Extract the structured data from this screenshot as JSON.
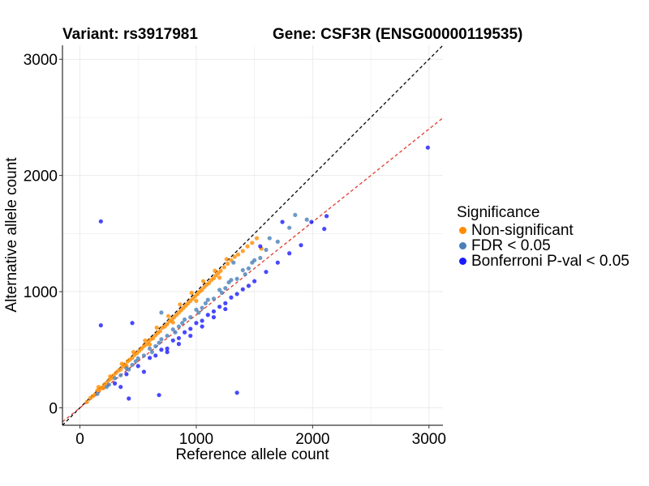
{
  "header": {
    "variant": "Variant: rs3917981",
    "gene": "Gene: CSF3R (ENSG00000119535)"
  },
  "chart_data": {
    "type": "scatter",
    "xlabel": "Reference allele count",
    "ylabel": "Alternative allele count",
    "xlim": [
      -150,
      3120
    ],
    "ylim": [
      -150,
      3120
    ],
    "xticks": [
      0,
      1000,
      2000,
      3000
    ],
    "yticks": [
      0,
      1000,
      2000,
      3000
    ],
    "grid": true,
    "legend_position": "right",
    "legend_title": "Significance",
    "reference_lines": [
      {
        "slope": 1.0,
        "intercept": 0,
        "color": "#000000",
        "style": "dashed"
      },
      {
        "slope": 0.8,
        "intercept": 0,
        "color": "#e03a2a",
        "style": "dashed"
      }
    ],
    "series": [
      {
        "name": "Non-significant",
        "color": "#ff8c00",
        "points": [
          [
            60,
            50
          ],
          [
            90,
            85
          ],
          [
            110,
            100
          ],
          [
            130,
            115
          ],
          [
            150,
            150
          ],
          [
            170,
            160
          ],
          [
            190,
            175
          ],
          [
            210,
            200
          ],
          [
            230,
            215
          ],
          [
            250,
            240
          ],
          [
            270,
            255
          ],
          [
            290,
            280
          ],
          [
            310,
            300
          ],
          [
            330,
            320
          ],
          [
            350,
            330
          ],
          [
            370,
            355
          ],
          [
            390,
            370
          ],
          [
            410,
            400
          ],
          [
            430,
            415
          ],
          [
            450,
            430
          ],
          [
            470,
            455
          ],
          [
            490,
            470
          ],
          [
            510,
            490
          ],
          [
            530,
            510
          ],
          [
            550,
            530
          ],
          [
            570,
            545
          ],
          [
            590,
            570
          ],
          [
            610,
            590
          ],
          [
            630,
            600
          ],
          [
            650,
            625
          ],
          [
            670,
            645
          ],
          [
            690,
            660
          ],
          [
            710,
            690
          ],
          [
            730,
            700
          ],
          [
            750,
            720
          ],
          [
            770,
            745
          ],
          [
            790,
            760
          ],
          [
            810,
            780
          ],
          [
            830,
            800
          ],
          [
            850,
            820
          ],
          [
            870,
            840
          ],
          [
            890,
            860
          ],
          [
            910,
            880
          ],
          [
            930,
            900
          ],
          [
            950,
            920
          ],
          [
            970,
            940
          ],
          [
            990,
            960
          ],
          [
            1010,
            980
          ],
          [
            1030,
            1000
          ],
          [
            1050,
            1015
          ],
          [
            1070,
            1040
          ],
          [
            1090,
            1060
          ],
          [
            1110,
            1075
          ],
          [
            1130,
            1100
          ],
          [
            1150,
            1115
          ],
          [
            1170,
            1140
          ],
          [
            1190,
            1160
          ],
          [
            1210,
            1180
          ],
          [
            1240,
            1210
          ],
          [
            1270,
            1240
          ],
          [
            1300,
            1270
          ],
          [
            1330,
            1300
          ],
          [
            1360,
            1320
          ],
          [
            1400,
            1350
          ],
          [
            1440,
            1390
          ],
          [
            1480,
            1420
          ],
          [
            1520,
            1460
          ],
          [
            160,
            180
          ],
          [
            260,
            270
          ],
          [
            360,
            380
          ],
          [
            460,
            480
          ],
          [
            560,
            580
          ],
          [
            660,
            690
          ],
          [
            760,
            790
          ],
          [
            860,
            890
          ],
          [
            960,
            990
          ],
          [
            1060,
            1090
          ],
          [
            1160,
            1180
          ],
          [
            1260,
            1280
          ],
          [
            200,
            170
          ],
          [
            400,
            360
          ],
          [
            600,
            545
          ],
          [
            800,
            735
          ],
          [
            1000,
            920
          ],
          [
            1200,
            1120
          ],
          [
            1560,
            1370
          ]
        ]
      },
      {
        "name": "FDR < 0.05",
        "color": "#4a7fb8",
        "points": [
          [
            150,
            120
          ],
          [
            250,
            200
          ],
          [
            350,
            280
          ],
          [
            450,
            370
          ],
          [
            550,
            450
          ],
          [
            650,
            530
          ],
          [
            750,
            620
          ],
          [
            850,
            700
          ],
          [
            950,
            780
          ],
          [
            1050,
            860
          ],
          [
            1150,
            940
          ],
          [
            1250,
            1030
          ],
          [
            1350,
            1110
          ],
          [
            1450,
            1200
          ],
          [
            1550,
            1290
          ],
          [
            300,
            255
          ],
          [
            400,
            340
          ],
          [
            500,
            425
          ],
          [
            600,
            510
          ],
          [
            700,
            590
          ],
          [
            800,
            675
          ],
          [
            900,
            760
          ],
          [
            1000,
            845
          ],
          [
            1100,
            930
          ],
          [
            1200,
            1015
          ],
          [
            1300,
            1100
          ],
          [
            1400,
            1185
          ],
          [
            1500,
            1270
          ],
          [
            1600,
            1360
          ],
          [
            1700,
            1430
          ],
          [
            1800,
            1550
          ],
          [
            1950,
            1620
          ],
          [
            1850,
            1660
          ],
          [
            1630,
            1460
          ],
          [
            1320,
            1250
          ],
          [
            700,
            820
          ],
          [
            230,
            180
          ],
          [
            420,
            330
          ],
          [
            620,
            480
          ],
          [
            820,
            650
          ],
          [
            1020,
            820
          ],
          [
            1220,
            990
          ],
          [
            1420,
            1150
          ],
          [
            480,
            400
          ],
          [
            680,
            560
          ],
          [
            880,
            730
          ],
          [
            1080,
            900
          ],
          [
            1280,
            1080
          ],
          [
            1480,
            1250
          ]
        ]
      },
      {
        "name": "Bonferroni P-val < 0.05",
        "color": "#1a1aff",
        "points": [
          [
            300,
            210
          ],
          [
            400,
            290
          ],
          [
            500,
            360
          ],
          [
            600,
            430
          ],
          [
            700,
            500
          ],
          [
            800,
            580
          ],
          [
            900,
            650
          ],
          [
            1000,
            730
          ],
          [
            1100,
            800
          ],
          [
            1200,
            870
          ],
          [
            1300,
            950
          ],
          [
            1400,
            1020
          ],
          [
            1500,
            1090
          ],
          [
            1600,
            1170
          ],
          [
            1700,
            1250
          ],
          [
            1800,
            1330
          ],
          [
            1900,
            1400
          ],
          [
            1990,
            1600
          ],
          [
            2100,
            1540
          ],
          [
            2120,
            1650
          ],
          [
            2990,
            2240
          ],
          [
            180,
            1605
          ],
          [
            180,
            710
          ],
          [
            450,
            730
          ],
          [
            420,
            80
          ],
          [
            680,
            110
          ],
          [
            1350,
            130
          ],
          [
            1740,
            1600
          ],
          [
            1550,
            1390
          ],
          [
            650,
            450
          ],
          [
            750,
            510
          ],
          [
            850,
            600
          ],
          [
            950,
            680
          ],
          [
            1050,
            750
          ],
          [
            1150,
            830
          ],
          [
            1250,
            900
          ],
          [
            1350,
            980
          ],
          [
            1450,
            1050
          ],
          [
            1150,
            780
          ],
          [
            1250,
            850
          ],
          [
            1050,
            700
          ],
          [
            950,
            620
          ],
          [
            850,
            550
          ],
          [
            750,
            480
          ],
          [
            350,
            180
          ],
          [
            550,
            310
          ]
        ]
      }
    ]
  }
}
